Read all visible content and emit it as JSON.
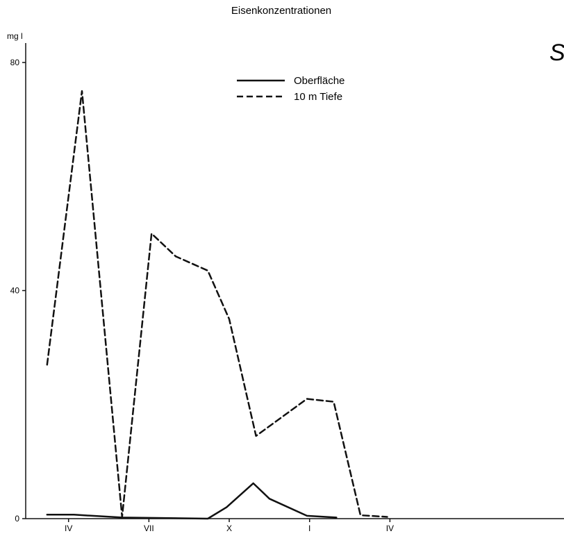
{
  "chart_data": {
    "type": "line",
    "title": "Eisenkonzentrationen",
    "ylabel": "mg l",
    "xlabel": "",
    "ylim": [
      0,
      80
    ],
    "yticks": [
      "0",
      "40",
      "80"
    ],
    "xticks": [
      {
        "label": "IV",
        "x": 3
      },
      {
        "label": "VII",
        "x": 6
      },
      {
        "label": "X",
        "x": 9
      },
      {
        "label": "I",
        "x": 12
      },
      {
        "label": "IV",
        "x": 15
      }
    ],
    "xlim": [
      1.4,
      21.5
    ],
    "grid": false,
    "legend": "top-center",
    "corner_text": "S",
    "series": [
      {
        "name": "Oberfläche",
        "style": "solid",
        "color": "#111111",
        "points": [
          [
            2.2,
            0.7
          ],
          [
            3.2,
            0.7
          ],
          [
            5.0,
            0.2
          ],
          [
            8.2,
            0.0
          ],
          [
            8.9,
            2.0
          ],
          [
            9.9,
            6.2
          ],
          [
            10.5,
            3.5
          ],
          [
            11.9,
            0.5
          ],
          [
            13.0,
            0.2
          ]
        ]
      },
      {
        "name": "10 m Tiefe",
        "style": "dashed",
        "color": "#111111",
        "points": [
          [
            2.2,
            27.0
          ],
          [
            3.5,
            75.0
          ],
          [
            5.0,
            0.3
          ],
          [
            6.1,
            50.0
          ],
          [
            7.0,
            46.0
          ],
          [
            8.2,
            43.5
          ],
          [
            9.0,
            35.0
          ],
          [
            10.0,
            14.5
          ],
          [
            11.9,
            21.0
          ],
          [
            12.9,
            20.5
          ],
          [
            13.9,
            0.6
          ],
          [
            14.9,
            0.3
          ]
        ]
      }
    ]
  }
}
